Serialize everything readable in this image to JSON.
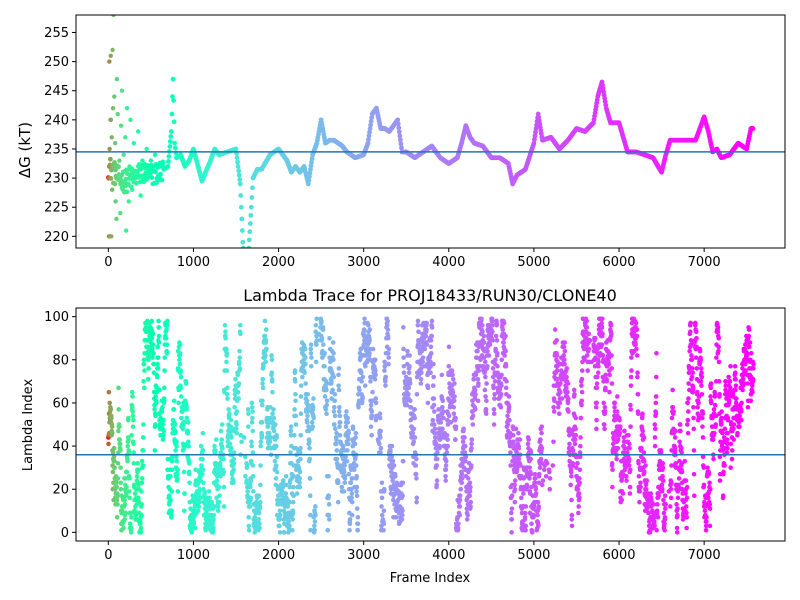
{
  "chart_data": [
    {
      "type": "scatter",
      "title": "",
      "xlabel": "",
      "ylabel": "ΔG (kT)",
      "xlim": [
        -380,
        7950
      ],
      "ylim": [
        218,
        258
      ],
      "xticks": [
        0,
        1000,
        2000,
        3000,
        4000,
        5000,
        6000,
        7000
      ],
      "yticks": [
        220,
        225,
        230,
        235,
        240,
        245,
        250,
        255
      ],
      "hline": 234.5,
      "hline_color": "#1f77b4",
      "colormap": "rainbow",
      "color_encodes": "frame index (early = red, late = violet)",
      "trend": {
        "x": [
          0,
          60,
          120,
          200,
          300,
          400,
          500,
          600,
          700,
          740,
          760,
          780,
          800,
          850,
          900,
          950,
          1000,
          1100,
          1200,
          1250,
          1300,
          1400,
          1500,
          1550,
          1580,
          1600,
          1650,
          1680,
          1700,
          1750,
          1800,
          1900,
          2000,
          2100,
          2150,
          2200,
          2250,
          2300,
          2350,
          2400,
          2450,
          2500,
          2550,
          2600,
          2650,
          2700,
          2750,
          2800,
          2900,
          3000,
          3050,
          3100,
          3150,
          3200,
          3250,
          3300,
          3350,
          3400,
          3450,
          3500,
          3600,
          3700,
          3800,
          3900,
          4000,
          4100,
          4150,
          4200,
          4250,
          4300,
          4400,
          4500,
          4600,
          4700,
          4750,
          4800,
          4900,
          5000,
          5050,
          5100,
          5200,
          5300,
          5400,
          5500,
          5600,
          5700,
          5750,
          5800,
          5850,
          5900,
          6000,
          6100,
          6200,
          6300,
          6400,
          6500,
          6550,
          6600,
          6700,
          6800,
          6900,
          7000,
          7050,
          7100,
          7150,
          7200,
          7300,
          7400,
          7500,
          7550,
          7580
        ],
        "y": [
          232,
          231,
          230,
          229.5,
          230,
          231,
          230.5,
          231,
          232,
          238,
          247,
          236,
          233.5,
          234,
          232,
          233,
          235,
          229.5,
          233,
          235,
          234,
          234.5,
          235,
          229,
          219,
          216,
          218,
          225,
          230,
          231.5,
          231.5,
          234,
          235,
          233,
          231,
          232,
          231,
          232,
          229,
          234,
          236,
          240,
          236,
          236.5,
          236.5,
          236,
          235.5,
          234.5,
          233.5,
          234,
          236,
          241,
          242,
          238.5,
          238.5,
          238,
          239,
          240,
          234.5,
          234.5,
          233.5,
          234.5,
          235.5,
          233.5,
          232.5,
          233.5,
          236,
          239,
          237,
          236,
          235.5,
          233.5,
          233.5,
          232.5,
          229,
          230.5,
          231.5,
          236,
          241,
          236.5,
          237,
          235,
          236.5,
          238.5,
          238,
          239.5,
          244,
          246.5,
          242,
          239.5,
          239.5,
          234.5,
          234.5,
          234,
          233.5,
          231,
          234,
          236.5,
          236.5,
          236.5,
          236.5,
          240.5,
          238,
          234.5,
          235,
          233.5,
          234,
          236,
          235,
          238.5,
          238.5
        ]
      },
      "early_scatter_points": [
        [
          8,
          220
        ],
        [
          20,
          220
        ],
        [
          35,
          220
        ],
        [
          5,
          230
        ],
        [
          10,
          232
        ],
        [
          15,
          235
        ],
        [
          25,
          240
        ],
        [
          30,
          240
        ],
        [
          40,
          237
        ],
        [
          12,
          250
        ],
        [
          28,
          251
        ],
        [
          45,
          228
        ],
        [
          55,
          242
        ],
        [
          60,
          258
        ],
        [
          50,
          252
        ],
        [
          70,
          244
        ],
        [
          80,
          236
        ],
        [
          85,
          226
        ],
        [
          95,
          223
        ],
        [
          100,
          247
        ],
        [
          110,
          241
        ],
        [
          130,
          233
        ],
        [
          140,
          224
        ],
        [
          150,
          239
        ],
        [
          160,
          245
        ],
        [
          170,
          229
        ],
        [
          180,
          234
        ],
        [
          200,
          237
        ],
        [
          210,
          221
        ],
        [
          220,
          242
        ],
        [
          240,
          226
        ],
        [
          250,
          232
        ],
        [
          260,
          240
        ],
        [
          280,
          228
        ],
        [
          300,
          236
        ],
        [
          320,
          231
        ],
        [
          350,
          238
        ],
        [
          380,
          227
        ],
        [
          400,
          233
        ],
        [
          420,
          230
        ],
        [
          450,
          235
        ],
        [
          480,
          231
        ],
        [
          500,
          233
        ],
        [
          520,
          229
        ],
        [
          550,
          234
        ],
        [
          600,
          232
        ]
      ]
    },
    {
      "type": "scatter",
      "title": "Lambda Trace for PROJ18433/RUN30/CLONE40",
      "xlabel": "Frame Index",
      "ylabel": "Lambda Index",
      "xlim": [
        -380,
        7950
      ],
      "ylim": [
        -4,
        104
      ],
      "xticks": [
        0,
        1000,
        2000,
        3000,
        4000,
        5000,
        6000,
        7000
      ],
      "yticks": [
        0,
        20,
        40,
        60,
        80,
        100
      ],
      "hline": 36,
      "hline_color": "#1f77b4",
      "colormap": "rainbow",
      "color_encodes": "frame index (early = red, late = violet)",
      "x_range": [
        0,
        7580
      ],
      "y_range": [
        0,
        99
      ],
      "sparse_gaps": [
        [
          1560,
          1620
        ],
        [
          2450,
          2490
        ],
        [
          3150,
          3180
        ],
        [
          5100,
          5230
        ],
        [
          5650,
          5700
        ],
        [
          6550,
          6600
        ]
      ]
    }
  ]
}
